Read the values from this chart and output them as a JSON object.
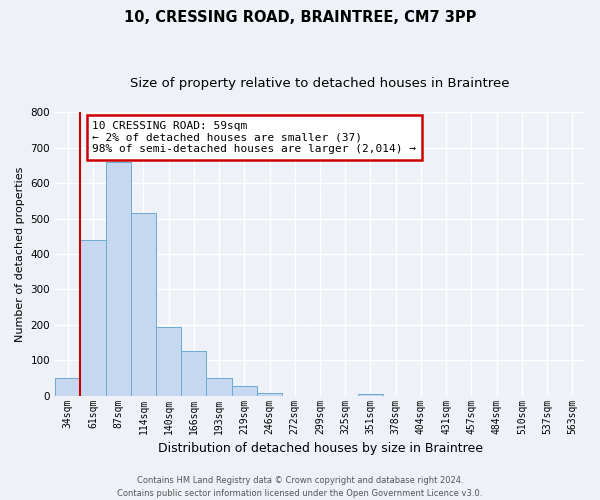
{
  "title": "10, CRESSING ROAD, BRAINTREE, CM7 3PP",
  "subtitle": "Size of property relative to detached houses in Braintree",
  "xlabel": "Distribution of detached houses by size in Braintree",
  "ylabel": "Number of detached properties",
  "bar_labels": [
    "34sqm",
    "61sqm",
    "87sqm",
    "114sqm",
    "140sqm",
    "166sqm",
    "193sqm",
    "219sqm",
    "246sqm",
    "272sqm",
    "299sqm",
    "325sqm",
    "351sqm",
    "378sqm",
    "404sqm",
    "431sqm",
    "457sqm",
    "484sqm",
    "510sqm",
    "537sqm",
    "563sqm"
  ],
  "bar_values": [
    50,
    440,
    660,
    515,
    193,
    127,
    50,
    27,
    8,
    0,
    0,
    0,
    5,
    0,
    0,
    0,
    0,
    0,
    0,
    0,
    0
  ],
  "bar_color": "#c5d8ef",
  "bar_edge_color": "#6aaad4",
  "highlight_color": "#cc0000",
  "annotation_line1": "10 CRESSING ROAD: 59sqm",
  "annotation_line2": "← 2% of detached houses are smaller (37)",
  "annotation_line3": "98% of semi-detached houses are larger (2,014) →",
  "annotation_box_color": "white",
  "annotation_box_edge": "#cc0000",
  "ylim": [
    0,
    800
  ],
  "yticks": [
    0,
    100,
    200,
    300,
    400,
    500,
    600,
    700,
    800
  ],
  "footer_line1": "Contains HM Land Registry data © Crown copyright and database right 2024.",
  "footer_line2": "Contains public sector information licensed under the Open Government Licence v3.0.",
  "bg_color": "#eef2f8",
  "grid_color": "white",
  "title_fontsize": 10.5,
  "subtitle_fontsize": 9.5,
  "xlabel_fontsize": 9,
  "ylabel_fontsize": 8,
  "tick_fontsize": 7,
  "annotation_fontsize": 8,
  "footer_fontsize": 6
}
